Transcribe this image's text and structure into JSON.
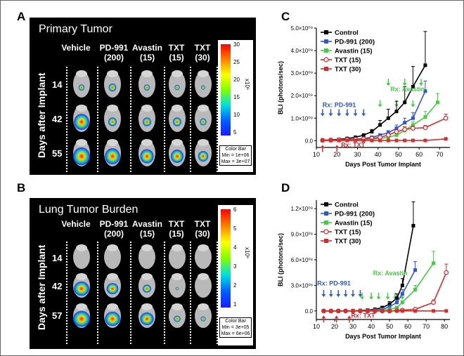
{
  "panels": {
    "A": {
      "letter": "A",
      "title": "Primary Tumor",
      "columns": [
        {
          "name": "Vehicle",
          "dose": ""
        },
        {
          "name": "PD-991",
          "dose": "(200)"
        },
        {
          "name": "Avastin",
          "dose": "(15)"
        },
        {
          "name": "TXT",
          "dose": "(15)"
        },
        {
          "name": "TXT",
          "dose": "(30)"
        }
      ],
      "rows": [
        "14",
        "42",
        "55"
      ],
      "row_axis_label": "Days after Implant",
      "colorbar": {
        "ticks": [
          "30",
          "25",
          "20",
          "15",
          "10",
          "5"
        ],
        "unit": "x10⁶",
        "note_title": "Color Bar",
        "note_min": "Min = 1e+06",
        "note_max": "Max = 3e+07"
      }
    },
    "B": {
      "letter": "B",
      "title": "Lung Tumor Burden",
      "columns": [
        {
          "name": "Vehicle",
          "dose": ""
        },
        {
          "name": "PD-991",
          "dose": "(200)"
        },
        {
          "name": "Avastin",
          "dose": "(15)"
        },
        {
          "name": "TXT",
          "dose": "(15)"
        },
        {
          "name": "TXT",
          "dose": "(30)"
        }
      ],
      "rows": [
        "14",
        "42",
        "57"
      ],
      "row_axis_label": "Days after Implant",
      "colorbar": {
        "ticks": [
          "6",
          "5",
          "4",
          "3",
          "2",
          "1"
        ],
        "unit": "x10⁶",
        "note_title": "Color Bar",
        "note_min": "Min = 3e+05",
        "note_max": "Max = 6e+06"
      }
    }
  },
  "chart_data": [
    {
      "panel": "C",
      "type": "line",
      "xlabel": "Days Post Tumor Implant",
      "ylabel": "BLI (photons/sec)",
      "xlim": [
        10,
        75
      ],
      "ylim": [
        -300000000,
        5000000000
      ],
      "xticks": [
        10,
        20,
        30,
        40,
        50,
        60,
        70
      ],
      "yticks": [
        {
          "v": 0,
          "label": "0.0"
        },
        {
          "v": 1000000000,
          "label": "1.0×10⁰⁹"
        },
        {
          "v": 2000000000,
          "label": "2.0×10⁰⁹"
        },
        {
          "v": 3000000000,
          "label": "3.0×10⁰⁹"
        },
        {
          "v": 4000000000,
          "label": "4.0×10⁰⁹"
        },
        {
          "v": 5000000000,
          "label": "5.0×10⁰⁹"
        }
      ],
      "series": [
        {
          "name": "Control",
          "color": "#000000",
          "marker": "square-filled",
          "x": [
            13,
            17,
            21,
            25,
            29,
            33,
            37,
            41,
            45,
            49,
            53,
            57,
            63
          ],
          "y": [
            20000000,
            40000000,
            60000000,
            100000000,
            150000000,
            250000000,
            400000000,
            700000000,
            1000000000,
            1300000000,
            1700000000,
            2400000000,
            3350000000
          ],
          "err": [
            0,
            0,
            0,
            0,
            0,
            50000000,
            100000000,
            200000000,
            400000000,
            450000000,
            700000000,
            900000000,
            1500000000
          ]
        },
        {
          "name": "PD-991 (200)",
          "color": "#2b57d9",
          "marker": "square-filled",
          "x": [
            13,
            17,
            21,
            25,
            29,
            33,
            37,
            41,
            45,
            49,
            53,
            57,
            63
          ],
          "y": [
            20000000,
            30000000,
            40000000,
            50000000,
            70000000,
            100000000,
            150000000,
            250000000,
            350000000,
            550000000,
            800000000,
            1000000000,
            2200000000
          ],
          "err": [
            0,
            0,
            0,
            0,
            0,
            0,
            30000000,
            50000000,
            100000000,
            150000000,
            200000000,
            250000000,
            450000000
          ]
        },
        {
          "name": "Avastin (15)",
          "color": "#3fcf3f",
          "marker": "square-filled",
          "x": [
            13,
            17,
            21,
            25,
            29,
            33,
            37,
            41,
            45,
            49,
            53,
            57,
            63,
            69
          ],
          "y": [
            10000000,
            20000000,
            30000000,
            40000000,
            50000000,
            60000000,
            70000000,
            100000000,
            150000000,
            250000000,
            450000000,
            700000000,
            1050000000,
            1700000000
          ],
          "err": [
            0,
            0,
            0,
            0,
            0,
            0,
            0,
            20000000,
            30000000,
            50000000,
            100000000,
            150000000,
            250000000,
            400000000
          ]
        },
        {
          "name": "TXT (15)",
          "color": "#d92b2b",
          "marker": "circle-open",
          "x": [
            13,
            17,
            21,
            25,
            29,
            33,
            37,
            41,
            45,
            49,
            53,
            57,
            63,
            73
          ],
          "y": [
            20000000,
            30000000,
            40000000,
            50000000,
            60000000,
            80000000,
            100000000,
            150000000,
            250000000,
            400000000,
            500000000,
            550000000,
            580000000,
            1000000000
          ],
          "err": [
            0,
            0,
            0,
            0,
            0,
            0,
            0,
            30000000,
            50000000,
            100000000,
            120000000,
            100000000,
            100000000,
            180000000
          ]
        },
        {
          "name": "TXT (30)",
          "color": "#d92b2b",
          "marker": "square-filled",
          "x": [
            13,
            17,
            21,
            25,
            29,
            33,
            37,
            41,
            45,
            49,
            53,
            57,
            63,
            73
          ],
          "y": [
            10000000,
            10000000,
            10000000,
            10000000,
            10000000,
            10000000,
            10000000,
            10000000,
            10000000,
            10000000,
            10000000,
            10000000,
            10000000,
            80000000
          ],
          "err": [
            0,
            0,
            0,
            0,
            0,
            0,
            0,
            0,
            0,
            0,
            0,
            0,
            0,
            20000000
          ]
        }
      ],
      "annotations": [
        {
          "text": "Rx: Avastin",
          "color": "#3fcf3f",
          "x": 46,
          "y": 2200000000
        },
        {
          "text": "Rx: PD-991",
          "color": "#2b57d9",
          "x": 13,
          "y": 1500000000
        },
        {
          "text": "Rx: TXT",
          "color": "#d92b2b",
          "x": 22,
          "y": -280000000
        }
      ],
      "arrows": [
        {
          "color": "#2b57d9",
          "dir": "down",
          "x": [
            13,
            17,
            21,
            25,
            29,
            33
          ],
          "y": 1150000000
        },
        {
          "color": "#3fcf3f",
          "dir": "down",
          "x": [
            41,
            45,
            49,
            53,
            57,
            61
          ],
          "y": 1550000000,
          "alt_y": 2500000000
        },
        {
          "color": "#d92b2b",
          "dir": "up",
          "x": [
            13,
            20
          ],
          "y": -250000000
        }
      ]
    },
    {
      "panel": "D",
      "type": "line",
      "xlabel": "Days Post Tumor Implant",
      "ylabel": "BLI (photons/sec)",
      "xlim": [
        10,
        83
      ],
      "ylim": [
        -100000000,
        1300000000
      ],
      "xticks": [
        10,
        20,
        30,
        40,
        50,
        60,
        70,
        80
      ],
      "yticks": [
        {
          "v": 0,
          "label": "0.0"
        },
        {
          "v": 300000000,
          "label": "3.0×10⁰⁸"
        },
        {
          "v": 600000000,
          "label": "6.0×10⁰⁸"
        },
        {
          "v": 900000000,
          "label": "9.0×10⁰⁸"
        },
        {
          "v": 1200000000,
          "label": "1.2×10⁰⁹"
        }
      ],
      "series": [
        {
          "name": "Control",
          "color": "#000000",
          "marker": "square-filled",
          "x": [
            14,
            18,
            22,
            26,
            30,
            34,
            38,
            42,
            46,
            50,
            54,
            57,
            63
          ],
          "y": [
            0,
            0,
            0,
            0,
            0,
            5000000,
            10000000,
            20000000,
            40000000,
            80000000,
            150000000,
            300000000,
            1000000000
          ],
          "err": [
            0,
            0,
            0,
            0,
            0,
            0,
            0,
            0,
            10000000,
            30000000,
            50000000,
            80000000,
            280000000
          ]
        },
        {
          "name": "PD-991 (200)",
          "color": "#2b57d9",
          "marker": "square-filled",
          "x": [
            14,
            18,
            22,
            26,
            30,
            34,
            38,
            42,
            46,
            50,
            54,
            57,
            64
          ],
          "y": [
            0,
            0,
            0,
            0,
            0,
            0,
            5000000,
            10000000,
            20000000,
            50000000,
            100000000,
            200000000,
            480000000
          ],
          "err": [
            0,
            0,
            0,
            0,
            0,
            0,
            0,
            0,
            0,
            10000000,
            30000000,
            50000000,
            100000000
          ]
        },
        {
          "name": "Avastin (15)",
          "color": "#3fcf3f",
          "marker": "square-filled",
          "x": [
            14,
            18,
            22,
            26,
            30,
            34,
            38,
            42,
            46,
            50,
            54,
            57,
            64,
            74
          ],
          "y": [
            0,
            0,
            0,
            0,
            0,
            0,
            0,
            5000000,
            10000000,
            20000000,
            40000000,
            100000000,
            250000000,
            560000000
          ],
          "err": [
            0,
            0,
            0,
            0,
            0,
            0,
            0,
            0,
            0,
            0,
            10000000,
            20000000,
            50000000,
            140000000
          ]
        },
        {
          "name": "TXT (15)",
          "color": "#d92b2b",
          "marker": "circle-open",
          "x": [
            14,
            18,
            22,
            26,
            30,
            34,
            38,
            42,
            46,
            50,
            54,
            57,
            64,
            74,
            81
          ],
          "y": [
            0,
            0,
            0,
            0,
            0,
            0,
            0,
            0,
            0,
            0,
            5000000,
            10000000,
            20000000,
            100000000,
            450000000
          ],
          "err": [
            0,
            0,
            0,
            0,
            0,
            0,
            0,
            0,
            0,
            0,
            0,
            0,
            10000000,
            30000000,
            100000000
          ]
        },
        {
          "name": "TXT (30)",
          "color": "#d92b2b",
          "marker": "square-filled",
          "x": [
            14,
            18,
            22,
            26,
            30,
            34,
            38,
            42,
            46,
            50,
            54,
            57,
            64,
            74,
            81
          ],
          "y": [
            0,
            0,
            0,
            0,
            0,
            0,
            0,
            0,
            0,
            0,
            0,
            0,
            0,
            0,
            0
          ],
          "err": [
            0,
            0,
            0,
            0,
            0,
            0,
            0,
            0,
            0,
            0,
            0,
            0,
            0,
            0,
            0
          ]
        }
      ],
      "annotations": [
        {
          "text": "Rx: Avastin",
          "color": "#3fcf3f",
          "x": 41,
          "y": 420000000
        },
        {
          "text": "Rx: PD-991",
          "color": "#2b57d9",
          "x": 10.5,
          "y": 300000000
        },
        {
          "text": "Rx: TXT",
          "color": "#d92b2b",
          "x": 29,
          "y": -80000000
        }
      ],
      "arrows": [
        {
          "color": "#2b57d9",
          "dir": "down",
          "x": [
            14,
            18,
            22,
            26,
            30,
            34
          ],
          "y": 180000000
        },
        {
          "color": "#3fcf3f",
          "dir": "down",
          "x": [
            35,
            40,
            44,
            49,
            53,
            57
          ],
          "y": 150000000
        },
        {
          "color": "#d92b2b",
          "dir": "up",
          "x": [
            14,
            21,
            28
          ],
          "y": -70000000
        }
      ]
    }
  ],
  "panel_letters": {
    "C": "C",
    "D": "D"
  }
}
